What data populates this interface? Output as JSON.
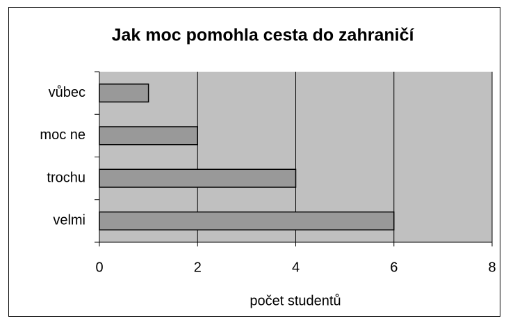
{
  "chart_data": {
    "type": "bar",
    "orientation": "horizontal",
    "title": "Jak moc pomohla cesta do zahraničí",
    "categories": [
      "vůbec",
      "moc ne",
      "trochu",
      "velmi"
    ],
    "values": [
      1,
      2,
      4,
      6
    ],
    "color": "#999999",
    "xlabel": "počet studentů",
    "xlim": [
      0,
      8
    ],
    "xticks": [
      0,
      2,
      4,
      6,
      8
    ],
    "grid": true
  }
}
